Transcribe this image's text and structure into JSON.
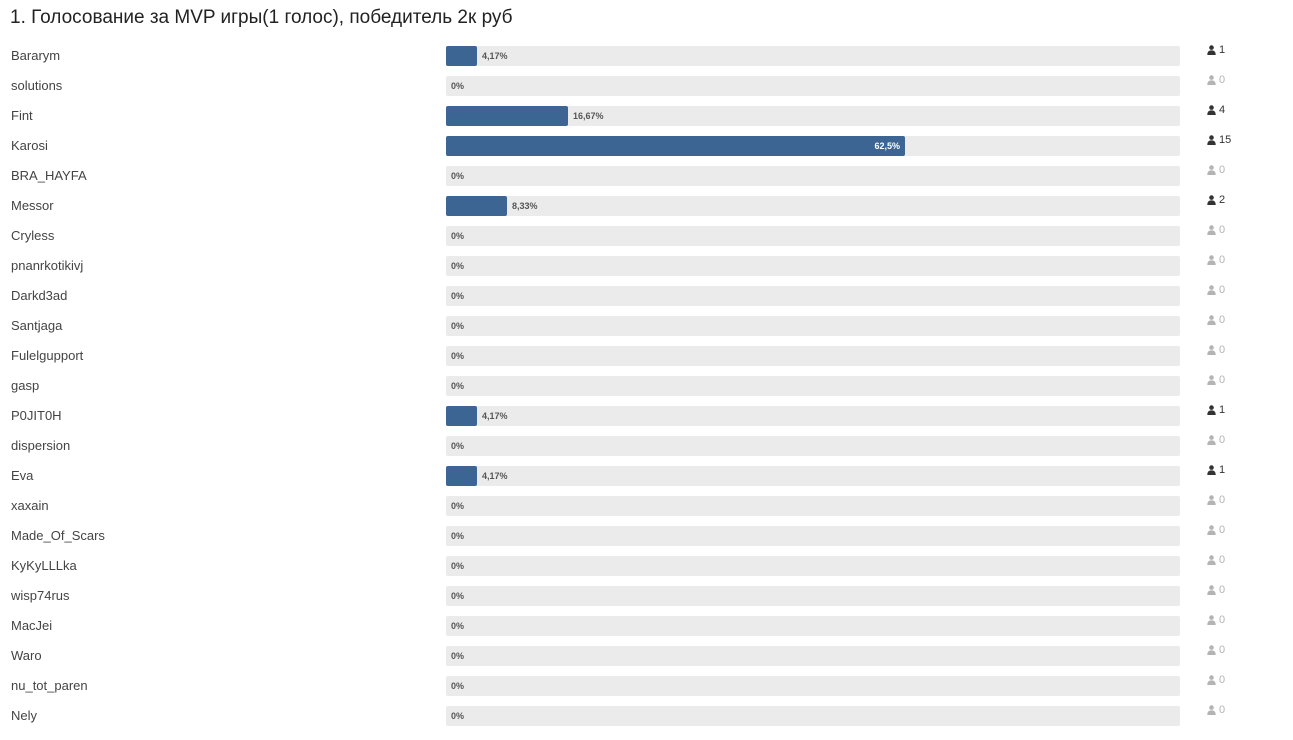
{
  "poll": {
    "title": "1. Голосование за MVP игры(1 голос), победитель 2к руб",
    "colors": {
      "bar_fill": "#3d6594",
      "bar_track": "#ebebeb",
      "icon_active": "#333333",
      "icon_zero": "#b4b4b4"
    },
    "options": [
      {
        "name": "Bararym",
        "percent": 4.17,
        "percent_label": "4,17%",
        "votes": "1"
      },
      {
        "name": "solutions",
        "percent": 0,
        "percent_label": "0%",
        "votes": "0"
      },
      {
        "name": "Fint",
        "percent": 16.67,
        "percent_label": "16,67%",
        "votes": "4"
      },
      {
        "name": "Karosi",
        "percent": 62.5,
        "percent_label": "62,5%",
        "votes": "15"
      },
      {
        "name": "BRA_HAYFA",
        "percent": 0,
        "percent_label": "0%",
        "votes": "0"
      },
      {
        "name": "Messor",
        "percent": 8.33,
        "percent_label": "8,33%",
        "votes": "2"
      },
      {
        "name": "Cryless",
        "percent": 0,
        "percent_label": "0%",
        "votes": "0"
      },
      {
        "name": "pnanrkotikivj",
        "percent": 0,
        "percent_label": "0%",
        "votes": "0"
      },
      {
        "name": "Darkd3ad",
        "percent": 0,
        "percent_label": "0%",
        "votes": "0"
      },
      {
        "name": "Santjaga",
        "percent": 0,
        "percent_label": "0%",
        "votes": "0"
      },
      {
        "name": "Fulelgupport",
        "percent": 0,
        "percent_label": "0%",
        "votes": "0"
      },
      {
        "name": "gasp",
        "percent": 0,
        "percent_label": "0%",
        "votes": "0"
      },
      {
        "name": "P0JIT0H",
        "percent": 4.17,
        "percent_label": "4,17%",
        "votes": "1"
      },
      {
        "name": "dispersion",
        "percent": 0,
        "percent_label": "0%",
        "votes": "0"
      },
      {
        "name": "Eva",
        "percent": 4.17,
        "percent_label": "4,17%",
        "votes": "1"
      },
      {
        "name": "xaxain",
        "percent": 0,
        "percent_label": "0%",
        "votes": "0"
      },
      {
        "name": "Made_Of_Scars",
        "percent": 0,
        "percent_label": "0%",
        "votes": "0"
      },
      {
        "name": "KyKyLLLka",
        "percent": 0,
        "percent_label": "0%",
        "votes": "0"
      },
      {
        "name": "wisp74rus",
        "percent": 0,
        "percent_label": "0%",
        "votes": "0"
      },
      {
        "name": "MacJei",
        "percent": 0,
        "percent_label": "0%",
        "votes": "0"
      },
      {
        "name": "Waro",
        "percent": 0,
        "percent_label": "0%",
        "votes": "0"
      },
      {
        "name": "nu_tot_paren",
        "percent": 0,
        "percent_label": "0%",
        "votes": "0"
      },
      {
        "name": "Nely",
        "percent": 0,
        "percent_label": "0%",
        "votes": "0"
      }
    ]
  }
}
